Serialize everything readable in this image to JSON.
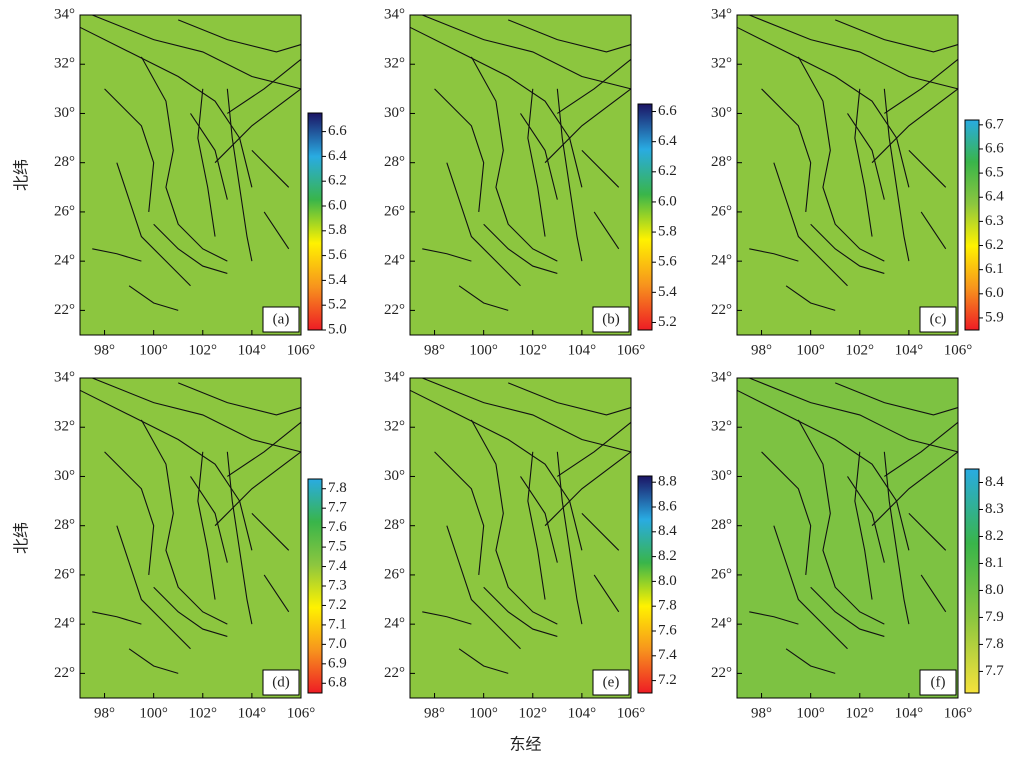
{
  "chart_data": [
    {
      "type": "map",
      "label": "(a)",
      "ylabel": "北纬",
      "xlim": [
        97,
        106
      ],
      "ylim": [
        21,
        34
      ],
      "xticks": [
        {
          "value": 98,
          "label": "98°"
        },
        {
          "value": 100,
          "label": "100°"
        },
        {
          "value": 102,
          "label": "102°"
        },
        {
          "value": 104,
          "label": "104°"
        },
        {
          "value": 106,
          "label": "106°"
        }
      ],
      "yticks": [
        {
          "value": 22,
          "label": "22°"
        },
        {
          "value": 24,
          "label": "24°"
        },
        {
          "value": 26,
          "label": "26°"
        },
        {
          "value": 28,
          "label": "28°"
        },
        {
          "value": 30,
          "label": "30°"
        },
        {
          "value": 32,
          "label": "32°"
        },
        {
          "value": 34,
          "label": "34°"
        }
      ],
      "clim": [
        5.0,
        6.75
      ],
      "cticks": [
        {
          "value": 5,
          "label": "5.0"
        },
        5.2,
        5.4,
        5.6,
        5.8,
        {
          "value": 6,
          "label": "6.0"
        },
        6.2,
        6.4,
        6.6
      ],
      "field_color": "#8cc63f",
      "colormap": [
        "#ee1c25",
        "#f7941d",
        "#fff200",
        "#39b54a",
        "#29abe2",
        "#1b1464"
      ]
    },
    {
      "type": "map",
      "label": "(b)",
      "xlim": [
        97,
        106
      ],
      "ylim": [
        21,
        34
      ],
      "xticks": [
        {
          "value": 98,
          "label": "98°"
        },
        {
          "value": 100,
          "label": "100°"
        },
        {
          "value": 102,
          "label": "102°"
        },
        {
          "value": 104,
          "label": "104°"
        },
        {
          "value": 106,
          "label": "106°"
        }
      ],
      "yticks": [
        {
          "value": 22,
          "label": "22°"
        },
        {
          "value": 24,
          "label": "24°"
        },
        {
          "value": 26,
          "label": "26°"
        },
        {
          "value": 28,
          "label": "28°"
        },
        {
          "value": 30,
          "label": "30°"
        },
        {
          "value": 32,
          "label": "32°"
        },
        {
          "value": 34,
          "label": "34°"
        }
      ],
      "clim": [
        5.15,
        6.65
      ],
      "cticks": [
        5.2,
        5.4,
        5.6,
        5.8,
        {
          "value": 6,
          "label": "6.0"
        },
        6.2,
        6.4,
        6.6
      ],
      "field_color": "#8cc63f",
      "colormap": [
        "#ee1c25",
        "#f7941d",
        "#fff200",
        "#39b54a",
        "#29abe2",
        "#1b1464"
      ]
    },
    {
      "type": "map",
      "label": "(c)",
      "xlim": [
        97,
        106
      ],
      "ylim": [
        21,
        34
      ],
      "xticks": [
        {
          "value": 98,
          "label": "98°"
        },
        {
          "value": 100,
          "label": "100°"
        },
        {
          "value": 102,
          "label": "102°"
        },
        {
          "value": 104,
          "label": "104°"
        },
        {
          "value": 106,
          "label": "106°"
        }
      ],
      "yticks": [
        {
          "value": 22,
          "label": "22°"
        },
        {
          "value": 24,
          "label": "24°"
        },
        {
          "value": 26,
          "label": "26°"
        },
        {
          "value": 28,
          "label": "28°"
        },
        {
          "value": 30,
          "label": "30°"
        },
        {
          "value": 32,
          "label": "32°"
        },
        {
          "value": 34,
          "label": "34°"
        }
      ],
      "clim": [
        5.85,
        6.72
      ],
      "cticks": [
        5.9,
        {
          "value": 6,
          "label": "6.0"
        },
        6.1,
        6.2,
        6.3,
        6.4,
        6.5,
        6.6,
        6.7
      ],
      "field_color": "#8cc63f",
      "colormap": [
        "#ee1c25",
        "#f7941d",
        "#fff200",
        "#8cc63f",
        "#39b54a",
        "#29abe2"
      ]
    },
    {
      "type": "map",
      "label": "(d)",
      "ylabel": "北纬",
      "xlim": [
        97,
        106
      ],
      "ylim": [
        21,
        34
      ],
      "xticks": [
        {
          "value": 98,
          "label": "98°"
        },
        {
          "value": 100,
          "label": "100°"
        },
        {
          "value": 102,
          "label": "102°"
        },
        {
          "value": 104,
          "label": "104°"
        },
        {
          "value": 106,
          "label": "106°"
        }
      ],
      "yticks": [
        {
          "value": 22,
          "label": "22°"
        },
        {
          "value": 24,
          "label": "24°"
        },
        {
          "value": 26,
          "label": "26°"
        },
        {
          "value": 28,
          "label": "28°"
        },
        {
          "value": 30,
          "label": "30°"
        },
        {
          "value": 32,
          "label": "32°"
        },
        {
          "value": 34,
          "label": "34°"
        }
      ],
      "clim": [
        6.75,
        7.85
      ],
      "cticks": [
        6.8,
        6.9,
        {
          "value": 7,
          "label": "7.0"
        },
        7.1,
        7.2,
        7.3,
        7.4,
        7.5,
        7.6,
        7.7,
        7.8
      ],
      "field_color": "#8cc63f",
      "colormap": [
        "#ee1c25",
        "#f7941d",
        "#fff200",
        "#8cc63f",
        "#39b54a",
        "#29abe2"
      ]
    },
    {
      "type": "map",
      "label": "(e)",
      "xlabel": "东经",
      "xlim": [
        97,
        106
      ],
      "ylim": [
        21,
        34
      ],
      "xticks": [
        {
          "value": 98,
          "label": "98°"
        },
        {
          "value": 100,
          "label": "100°"
        },
        {
          "value": 102,
          "label": "102°"
        },
        {
          "value": 104,
          "label": "104°"
        },
        {
          "value": 106,
          "label": "106°"
        }
      ],
      "yticks": [
        {
          "value": 22,
          "label": "22°"
        },
        {
          "value": 24,
          "label": "24°"
        },
        {
          "value": 26,
          "label": "26°"
        },
        {
          "value": 28,
          "label": "28°"
        },
        {
          "value": 30,
          "label": "30°"
        },
        {
          "value": 32,
          "label": "32°"
        },
        {
          "value": 34,
          "label": "34°"
        }
      ],
      "clim": [
        7.1,
        8.85
      ],
      "cticks": [
        7.2,
        7.4,
        7.6,
        7.8,
        {
          "value": 8,
          "label": "8.0"
        },
        8.2,
        8.4,
        8.6,
        8.8
      ],
      "field_color": "#8cc63f",
      "colormap": [
        "#ee1c25",
        "#f7941d",
        "#fff200",
        "#39b54a",
        "#29abe2",
        "#1b1464"
      ]
    },
    {
      "type": "map",
      "label": "(f)",
      "xlim": [
        97,
        106
      ],
      "ylim": [
        21,
        34
      ],
      "xticks": [
        {
          "value": 98,
          "label": "98°"
        },
        {
          "value": 100,
          "label": "100°"
        },
        {
          "value": 102,
          "label": "102°"
        },
        {
          "value": 104,
          "label": "104°"
        },
        {
          "value": 106,
          "label": "106°"
        }
      ],
      "yticks": [
        {
          "value": 22,
          "label": "22°"
        },
        {
          "value": 24,
          "label": "24°"
        },
        {
          "value": 26,
          "label": "26°"
        },
        {
          "value": 28,
          "label": "28°"
        },
        {
          "value": 30,
          "label": "30°"
        },
        {
          "value": 32,
          "label": "32°"
        },
        {
          "value": 34,
          "label": "34°"
        }
      ],
      "clim": [
        7.62,
        8.45
      ],
      "cticks": [
        7.7,
        7.8,
        7.9,
        {
          "value": 8,
          "label": "8.0"
        },
        8.1,
        8.2,
        8.3,
        8.4
      ],
      "field_color": "#7dc242",
      "colormap": [
        "#f5e23c",
        "#8cc63f",
        "#39b54a",
        "#29abe2"
      ]
    }
  ]
}
